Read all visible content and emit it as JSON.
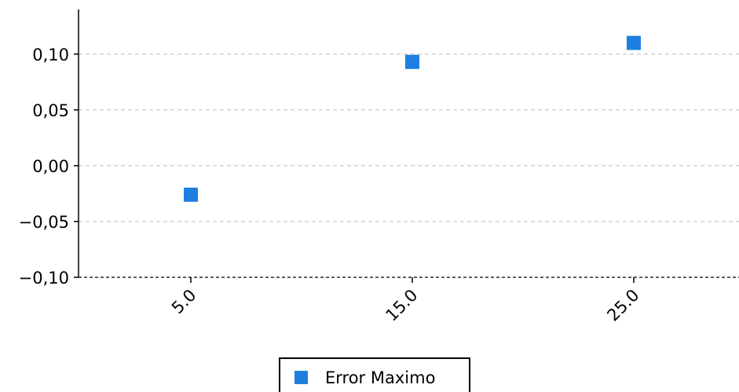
{
  "chart_data": {
    "type": "scatter",
    "categories": [
      "5.0",
      "15.0",
      "25.0"
    ],
    "series": [
      {
        "name": "Error Maximo",
        "color": "#1f7fe0",
        "marker": "square",
        "values": [
          -0.026,
          0.093,
          0.11
        ]
      }
    ],
    "ylim": [
      -0.1,
      0.14
    ],
    "yticks": [
      -0.1,
      -0.05,
      0.0,
      0.05,
      0.1
    ],
    "ytick_labels": [
      "−0,10",
      "−0,05",
      "0,00",
      "0,05",
      "0,10"
    ],
    "grid": true,
    "legend_position": "bottom-center",
    "xtick_rotation": -45
  }
}
